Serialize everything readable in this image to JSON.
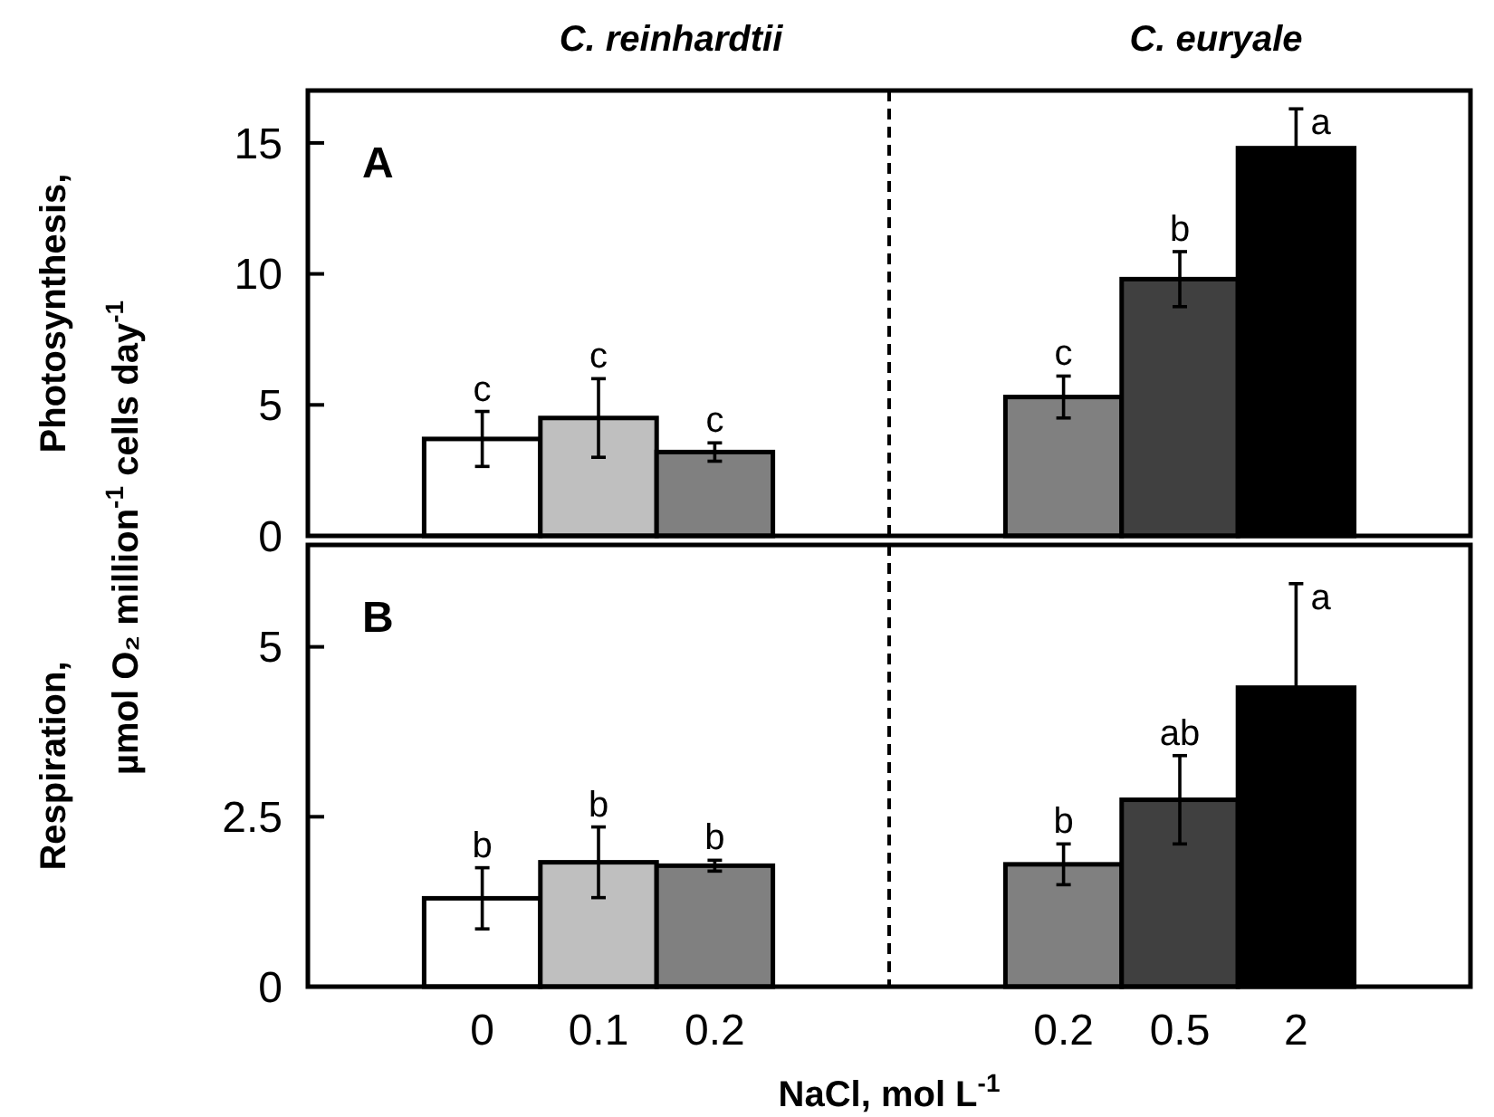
{
  "chart_data": [
    {
      "type": "bar",
      "title": "A",
      "ylabel": "Photosynthesis,",
      "annotations": [
        "C. reinhardtii",
        "C. euryale"
      ],
      "categories": [
        null,
        "0",
        "0.1",
        "0.2",
        null,
        null,
        "0.2",
        "0.5",
        "2",
        null
      ],
      "values": [
        null,
        3.7,
        4.5,
        3.2,
        null,
        null,
        5.3,
        9.8,
        14.8,
        null
      ],
      "errors": [
        null,
        1.05,
        1.5,
        0.35,
        null,
        null,
        0.8,
        1.05,
        1.5,
        null
      ],
      "colors": [
        null,
        "#ffffff",
        "#bfbfbf",
        "#808080",
        null,
        null,
        "#808080",
        "#404040",
        "#000000",
        null
      ],
      "value_labels": [
        null,
        "c",
        "c",
        "c",
        null,
        null,
        "c",
        "b",
        "a",
        null
      ],
      "ylim": [
        0,
        17
      ],
      "yticks": [
        0,
        5,
        10,
        15
      ],
      "tick_labels": "y",
      "grid": false
    },
    {
      "type": "bar",
      "title": "B",
      "ylabel": "Respiration,",
      "xlabel": "NaCl, mol L$^{-1}$",
      "annotations": [
        "µmol O₂ million$^{-1}$ cells day$^{-1}$"
      ],
      "categories": [
        null,
        "0",
        "0.1",
        "0.2",
        null,
        null,
        "0.2",
        "0.5",
        "2",
        null
      ],
      "values": [
        null,
        1.3,
        1.83,
        1.78,
        null,
        null,
        1.8,
        2.75,
        4.4,
        null
      ],
      "errors": [
        null,
        0.45,
        0.52,
        0.08,
        null,
        null,
        0.3,
        0.65,
        1.53,
        null
      ],
      "colors": [
        null,
        "#ffffff",
        "#bfbfbf",
        "#808080",
        null,
        null,
        "#808080",
        "#404040",
        "#000000",
        null
      ],
      "value_labels": [
        null,
        "b",
        "b",
        "b",
        null,
        null,
        "b",
        "ab",
        "a",
        null
      ],
      "ylim": [
        0,
        6.5
      ],
      "yticks": [
        0,
        2.5,
        5
      ],
      "grid": false
    }
  ]
}
